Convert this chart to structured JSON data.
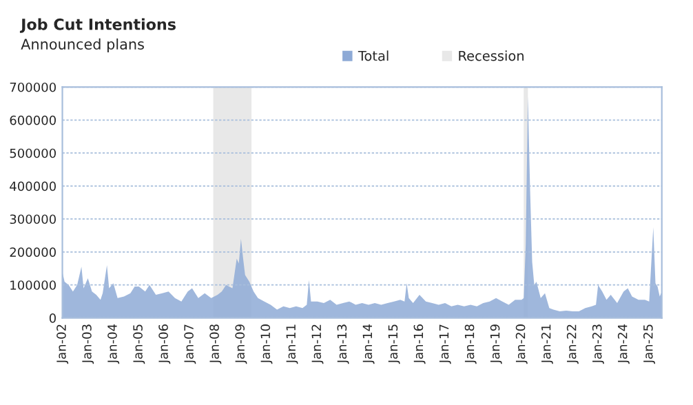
{
  "chart_data": {
    "type": "area",
    "title": "Job Cut Intentions",
    "subtitle": "Announced plans",
    "series": [
      {
        "name": "Total",
        "color": "#8eaad6",
        "x": [
          "2002-01",
          "2002-02",
          "2002-04",
          "2002-06",
          "2002-08",
          "2002-10",
          "2002-11",
          "2003-01",
          "2003-03",
          "2003-05",
          "2003-07",
          "2003-08",
          "2003-10",
          "2003-11",
          "2004-01",
          "2004-03",
          "2004-06",
          "2004-09",
          "2004-11",
          "2005-01",
          "2005-04",
          "2005-06",
          "2005-09",
          "2005-12",
          "2006-03",
          "2006-06",
          "2006-09",
          "2006-12",
          "2007-02",
          "2007-05",
          "2007-08",
          "2007-11",
          "2008-02",
          "2008-04",
          "2008-06",
          "2008-09",
          "2008-11",
          "2008-12",
          "2009-01",
          "2009-02",
          "2009-03",
          "2009-05",
          "2009-07",
          "2009-09",
          "2009-12",
          "2010-03",
          "2010-06",
          "2010-09",
          "2010-12",
          "2011-03",
          "2011-06",
          "2011-08",
          "2011-09",
          "2011-10",
          "2012-01",
          "2012-04",
          "2012-07",
          "2012-10",
          "2013-01",
          "2013-04",
          "2013-07",
          "2013-10",
          "2014-01",
          "2014-04",
          "2014-07",
          "2014-10",
          "2015-01",
          "2015-04",
          "2015-06",
          "2015-07",
          "2015-08",
          "2015-10",
          "2016-01",
          "2016-04",
          "2016-07",
          "2016-10",
          "2017-01",
          "2017-04",
          "2017-07",
          "2017-10",
          "2018-01",
          "2018-04",
          "2018-07",
          "2018-10",
          "2019-01",
          "2019-04",
          "2019-07",
          "2019-10",
          "2020-01",
          "2020-02",
          "2020-03",
          "2020-04",
          "2020-05",
          "2020-06",
          "2020-07",
          "2020-08",
          "2020-10",
          "2020-12",
          "2021-02",
          "2021-04",
          "2021-07",
          "2021-10",
          "2022-01",
          "2022-04",
          "2022-07",
          "2022-10",
          "2022-12",
          "2023-01",
          "2023-03",
          "2023-05",
          "2023-07",
          "2023-10",
          "2024-01",
          "2024-03",
          "2024-05",
          "2024-08",
          "2024-11",
          "2025-01",
          "2025-02",
          "2025-03",
          "2025-04",
          "2025-05",
          "2025-06",
          "2025-07"
        ],
        "values": [
          140000,
          110000,
          100000,
          80000,
          100000,
          155000,
          90000,
          120000,
          80000,
          70000,
          55000,
          75000,
          160000,
          90000,
          105000,
          60000,
          65000,
          75000,
          95000,
          95000,
          80000,
          100000,
          70000,
          75000,
          80000,
          60000,
          50000,
          80000,
          90000,
          60000,
          75000,
          60000,
          70000,
          80000,
          100000,
          90000,
          180000,
          165000,
          240000,
          180000,
          130000,
          110000,
          80000,
          60000,
          50000,
          40000,
          25000,
          35000,
          30000,
          35000,
          30000,
          40000,
          115000,
          50000,
          50000,
          45000,
          55000,
          40000,
          45000,
          50000,
          40000,
          45000,
          40000,
          45000,
          40000,
          45000,
          50000,
          55000,
          50000,
          105000,
          60000,
          45000,
          70000,
          50000,
          45000,
          40000,
          45000,
          35000,
          40000,
          35000,
          40000,
          35000,
          45000,
          50000,
          60000,
          50000,
          40000,
          55000,
          55000,
          60000,
          222000,
          671000,
          398000,
          170000,
          100000,
          110000,
          60000,
          75000,
          30000,
          25000,
          20000,
          22000,
          20000,
          20000,
          30000,
          35000,
          40000,
          100000,
          80000,
          55000,
          70000,
          45000,
          80000,
          90000,
          65000,
          55000,
          55000,
          50000,
          170000,
          275000,
          105000,
          95000,
          65000,
          80000
        ]
      }
    ],
    "bands": [
      {
        "axis": "x",
        "from": "2007-12",
        "to": "2009-06",
        "label": "Recession",
        "color": "#e8e8e8"
      },
      {
        "axis": "x",
        "from": "2020-02",
        "to": "2020-04",
        "color": "#e8e8e8"
      }
    ],
    "xlim": [
      "2002-01",
      "2025-07"
    ],
    "xticks": [
      {
        "value": "2002-01",
        "label": "Jan-02"
      },
      {
        "value": "2003-01",
        "label": "Jan-03"
      },
      {
        "value": "2004-01",
        "label": "Jan-04"
      },
      {
        "value": "2005-01",
        "label": "Jan-05"
      },
      {
        "value": "2006-01",
        "label": "Jan-06"
      },
      {
        "value": "2007-01",
        "label": "Jan-07"
      },
      {
        "value": "2008-01",
        "label": "Jan-08"
      },
      {
        "value": "2009-01",
        "label": "Jan-09"
      },
      {
        "value": "2010-01",
        "label": "Jan-10"
      },
      {
        "value": "2011-01",
        "label": "Jan-11"
      },
      {
        "value": "2012-01",
        "label": "Jan-12"
      },
      {
        "value": "2013-01",
        "label": "Jan-13"
      },
      {
        "value": "2014-01",
        "label": "Jan-14"
      },
      {
        "value": "2015-01",
        "label": "Jan-15"
      },
      {
        "value": "2016-01",
        "label": "Jan-16"
      },
      {
        "value": "2017-01",
        "label": "Jan-17"
      },
      {
        "value": "2018-01",
        "label": "Jan-18"
      },
      {
        "value": "2019-01",
        "label": "Jan-19"
      },
      {
        "value": "2020-01",
        "label": "Jan-20"
      },
      {
        "value": "2021-01",
        "label": "Jan-21"
      },
      {
        "value": "2022-01",
        "label": "Jan-22"
      },
      {
        "value": "2023-01",
        "label": "Jan-23"
      },
      {
        "value": "2024-01",
        "label": "Jan-24"
      },
      {
        "value": "2025-01",
        "label": "Jan-25"
      }
    ],
    "ylim": [
      0,
      700000
    ],
    "yticks": [
      0,
      100000,
      200000,
      300000,
      400000,
      500000,
      600000,
      700000
    ],
    "grid": "y",
    "legend": "top"
  }
}
